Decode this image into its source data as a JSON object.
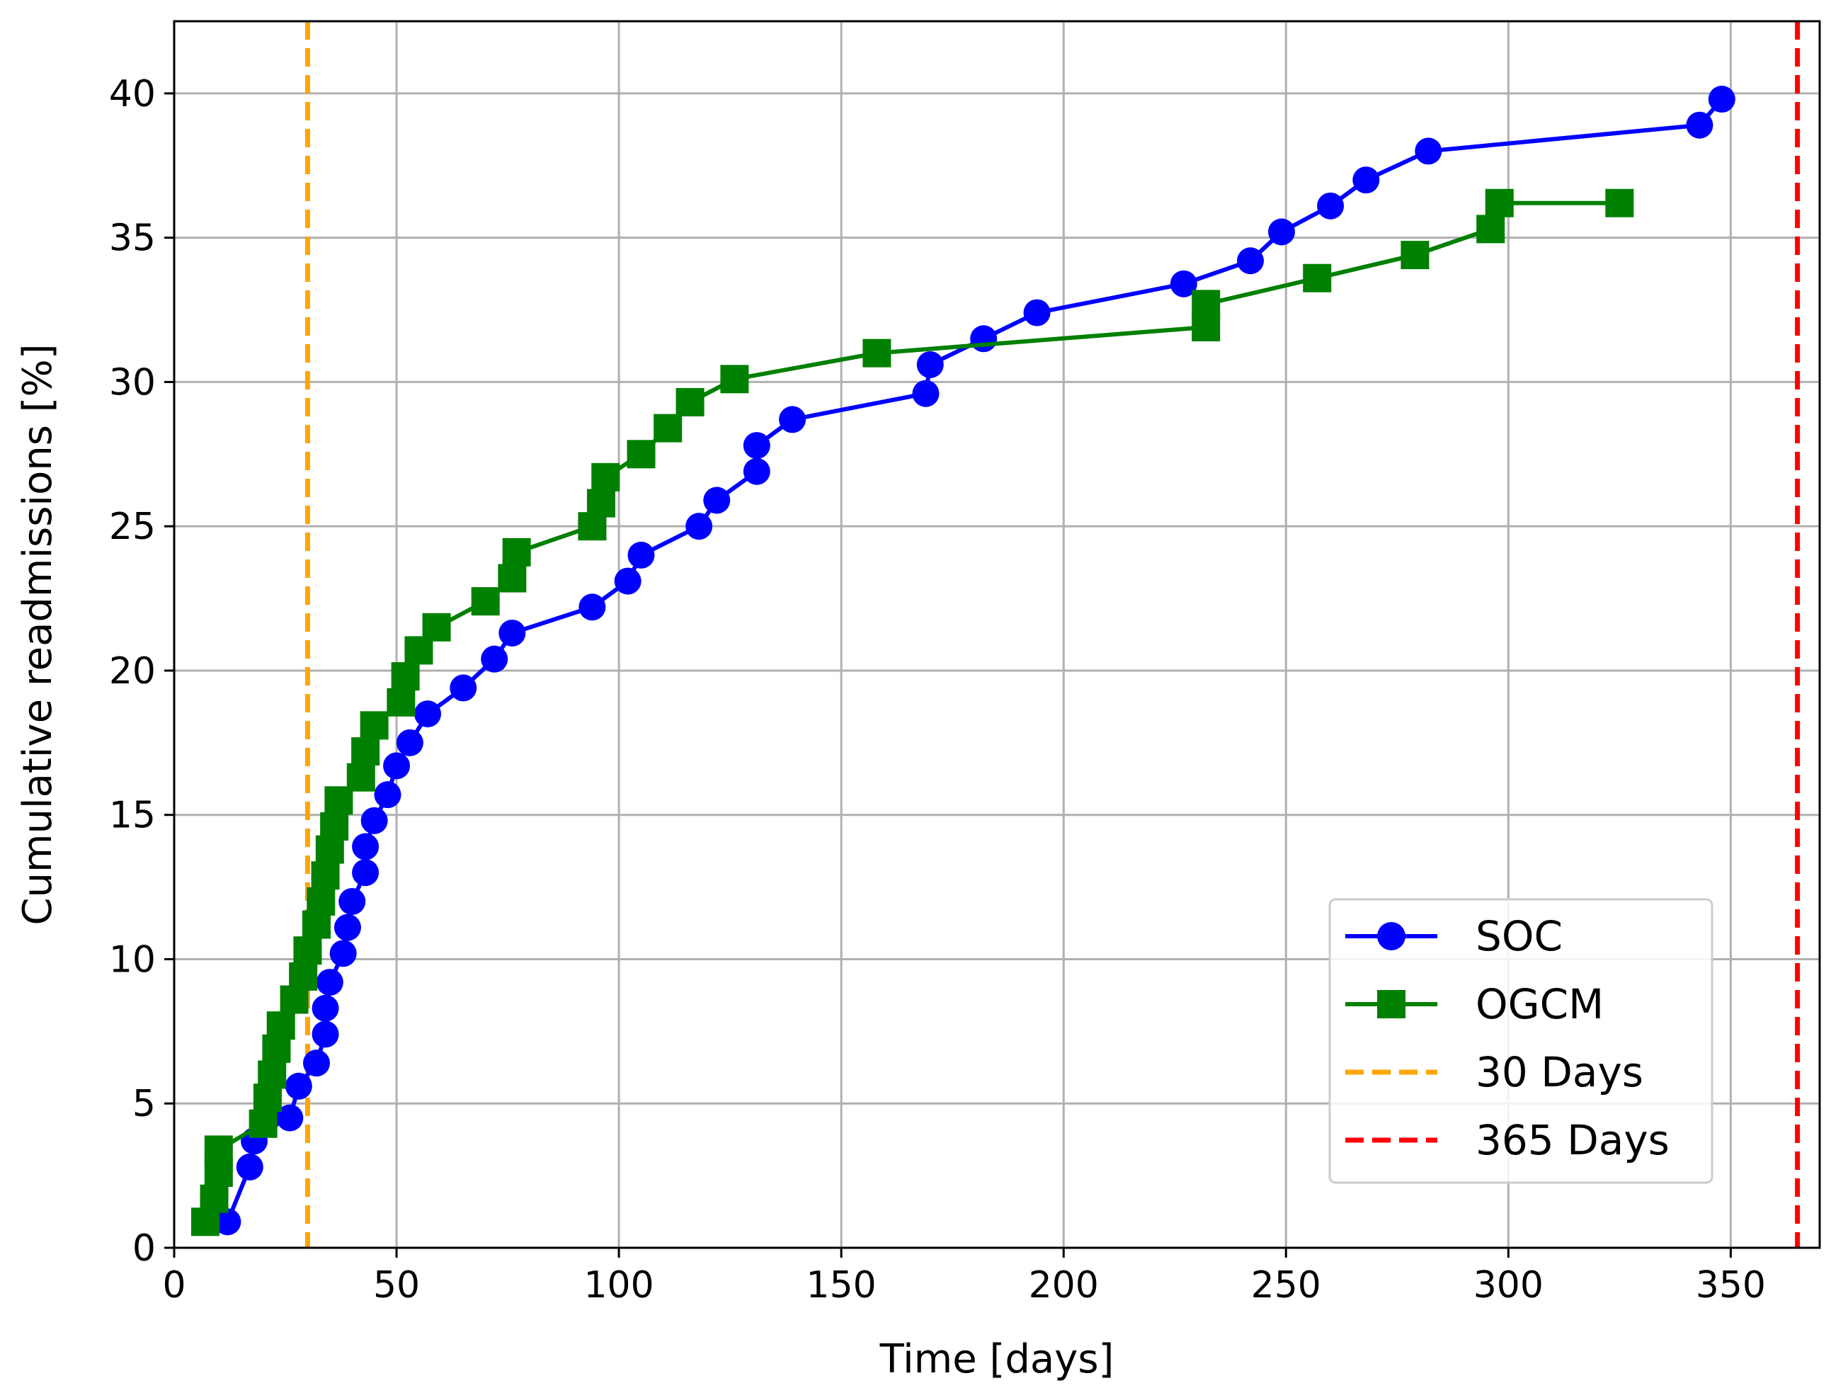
{
  "chart_data": {
    "type": "line",
    "title": "",
    "xlabel": "Time [days]",
    "ylabel": "Cumulative readmissions [%]",
    "xlim": [
      0,
      370
    ],
    "ylim": [
      0,
      42.5
    ],
    "xticks": [
      0,
      50,
      100,
      150,
      200,
      250,
      300,
      350
    ],
    "yticks": [
      0,
      5,
      10,
      15,
      20,
      25,
      30,
      35,
      40
    ],
    "grid": true,
    "legend_position": "lower-right",
    "series": [
      {
        "name": "SOC",
        "color": "#0000ff",
        "marker": "circle",
        "x": [
          12,
          17,
          18,
          21,
          26,
          28,
          32,
          34,
          34,
          35,
          38,
          39,
          40,
          43,
          43,
          45,
          48,
          50,
          53,
          57,
          65,
          72,
          76,
          94,
          102,
          105,
          118,
          122,
          131,
          131,
          139,
          169,
          170,
          182,
          194,
          227,
          242,
          249,
          260,
          268,
          282,
          343,
          348
        ],
        "y": [
          0.9,
          2.8,
          3.7,
          4.5,
          4.5,
          5.6,
          6.4,
          7.4,
          8.3,
          9.2,
          10.2,
          11.1,
          12.0,
          13.0,
          13.9,
          14.8,
          15.7,
          16.7,
          17.5,
          18.5,
          19.4,
          20.4,
          21.3,
          22.2,
          23.1,
          24.0,
          25.0,
          25.9,
          26.9,
          27.8,
          28.7,
          29.6,
          30.6,
          31.5,
          32.4,
          33.4,
          34.2,
          35.2,
          36.1,
          37.0,
          38.0,
          38.9,
          39.8
        ]
      },
      {
        "name": "OGCM",
        "color": "#008000",
        "marker": "square",
        "x": [
          7,
          9,
          10,
          10,
          20,
          21,
          22,
          23,
          24,
          27,
          29,
          30,
          32,
          33,
          34,
          35,
          36,
          37,
          42,
          43,
          45,
          51,
          52,
          55,
          59,
          70,
          76,
          77,
          94,
          96,
          97,
          105,
          111,
          116,
          126,
          158,
          232,
          232,
          257,
          279,
          296,
          298,
          325
        ],
        "y": [
          0.9,
          1.7,
          2.6,
          3.4,
          4.3,
          5.2,
          6.0,
          6.9,
          7.7,
          8.6,
          9.4,
          10.3,
          11.2,
          12.0,
          12.9,
          13.8,
          14.6,
          15.5,
          16.3,
          17.2,
          18.1,
          18.9,
          19.8,
          20.7,
          21.5,
          22.4,
          23.2,
          24.1,
          25.0,
          25.8,
          26.7,
          27.5,
          28.4,
          29.3,
          30.1,
          31.0,
          31.9,
          32.7,
          33.6,
          34.4,
          35.3,
          36.2,
          36.2
        ]
      }
    ],
    "reference_lines": [
      {
        "name": "30 Days",
        "x": 30,
        "color": "#ffa500",
        "style": "dashed"
      },
      {
        "name": "365 Days",
        "x": 365,
        "color": "#ff0000",
        "style": "dashed"
      }
    ]
  }
}
